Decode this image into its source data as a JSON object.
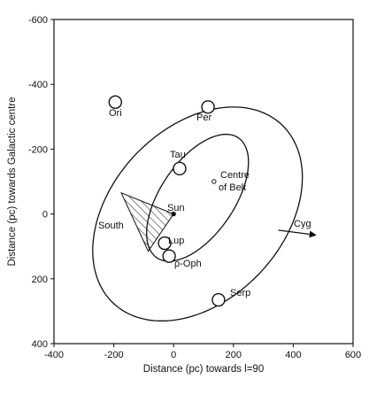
{
  "chart_data": {
    "type": "scatter",
    "xlabel": "Distance (pc) towards l=90",
    "ylabel": "Distance (pc) towards Galactic centre",
    "xlim": [
      -400,
      600
    ],
    "ylim": [
      -600,
      400
    ],
    "y_axis_inverted": true,
    "grid": false,
    "xticks": [
      "-400",
      "-200",
      "0",
      "200",
      "400",
      "600"
    ],
    "yticks": [
      "-600",
      "-400",
      "-200",
      "0",
      "200",
      "400"
    ],
    "regions": [
      {
        "name": "outer-ellipse",
        "center": [
          80,
          0
        ],
        "semi_axes": [
          395,
          275
        ],
        "angle_deg": -40
      },
      {
        "name": "inner-ellipse",
        "center": [
          80,
          -50
        ],
        "semi_axes": [
          230,
          120
        ],
        "angle_deg": -52
      }
    ],
    "wedge": {
      "label": "South",
      "apex": [
        0,
        0
      ],
      "points": [
        [
          -175,
          -65
        ],
        [
          -85,
          115
        ]
      ]
    },
    "points": [
      {
        "name": "Ori",
        "x": -195,
        "y": -345,
        "marker": "circle"
      },
      {
        "name": "Per",
        "x": 115,
        "y": -330,
        "marker": "circle"
      },
      {
        "name": "Tau",
        "x": 20,
        "y": -140,
        "marker": "circle"
      },
      {
        "name": "Centre of Belt",
        "x": 135,
        "y": -100,
        "marker": "dot"
      },
      {
        "name": "Sun",
        "x": 0,
        "y": 0,
        "marker": "dot"
      },
      {
        "name": "Lup",
        "x": -30,
        "y": 90,
        "marker": "circle"
      },
      {
        "name": "ρ-Oph",
        "x": -15,
        "y": 130,
        "marker": "circle"
      },
      {
        "name": "Serp",
        "x": 150,
        "y": 265,
        "marker": "circle"
      }
    ],
    "annotations": [
      {
        "text": "Cyg",
        "arrow_from": [
          350,
          50
        ],
        "arrow_to": [
          475,
          65
        ]
      },
      {
        "text": "South"
      }
    ]
  },
  "labels": {
    "ori": "Ori",
    "per": "Per",
    "tau": "Tau",
    "centre_line1": "Centre",
    "centre_line2": "of Belt",
    "sun": "Sun",
    "south": "South",
    "lup": "Lup",
    "oph": "ρ-Oph",
    "serp": "Serp",
    "cyg": "Cyg"
  },
  "colors": {
    "ink": "#111111",
    "background": "#ffffff"
  }
}
